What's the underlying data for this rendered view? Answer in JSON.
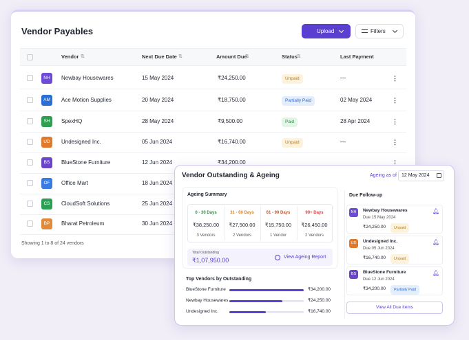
{
  "payables": {
    "title": "Vendor Payables",
    "upload": "Upload",
    "filters": "Filters",
    "columns": [
      "Vendor",
      "Next Due Date",
      "Amount Due",
      "Status",
      "Last Payment"
    ],
    "rows": [
      {
        "initials": "NH",
        "color": "#6d4bd6",
        "vendor": "Newbay Housewares",
        "due": "15 May 2024",
        "amount": "₹24,250.00",
        "status": "Unpaid",
        "status_color": "#b7791f",
        "status_bg": "#fdf3dc",
        "last": "—"
      },
      {
        "initials": "AM",
        "color": "#2a6fd6",
        "vendor": "Ace Motion Supplies",
        "due": "20 May 2024",
        "amount": "₹18,750.00",
        "status": "Partially Paid",
        "status_color": "#2f6bd0",
        "status_bg": "#e3eefc",
        "last": "02 May 2024"
      },
      {
        "initials": "SH",
        "color": "#2fa052",
        "vendor": "SpexHQ",
        "due": "28 May 2024",
        "amount": "₹9,500.00",
        "status": "Paid",
        "status_color": "#2e8b47",
        "status_bg": "#e2f5e6",
        "last": "28 Apr 2024"
      },
      {
        "initials": "UD",
        "color": "#e07a2a",
        "vendor": "Undesigned Inc.",
        "due": "05 Jun 2024",
        "amount": "₹16,740.00",
        "status": "Unpaid",
        "status_color": "#b7791f",
        "status_bg": "#fdf3dc",
        "last": "—"
      },
      {
        "initials": "BS",
        "color": "#6b45c8",
        "vendor": "BlueStone Furniture",
        "due": "12 Jun 2024",
        "amount": "₹34,200.00"
      },
      {
        "initials": "OF",
        "color": "#3a7be0",
        "vendor": "Office Mart",
        "due": "18 Jun 2024"
      },
      {
        "initials": "CS",
        "color": "#2f9e55",
        "vendor": "CloudSoft Solutions",
        "due": "25 Jun 2024"
      },
      {
        "initials": "BP",
        "color": "#e08a3a",
        "vendor": "Bharat Petroleum",
        "due": "30 Jun 2024"
      }
    ],
    "footer": "Showing 1 to 8 of 24 vendors"
  },
  "ageing": {
    "title": "Vendor Outstanding & Ageing",
    "as_of_label": "Ageing as of",
    "as_of": "12 May 2024",
    "summary_title": "Ageing Summary",
    "buckets": [
      {
        "label": "0 - 30 Days",
        "amount": "₹38,250.00",
        "count": "3 Vendors",
        "color": "#2e8b47"
      },
      {
        "label": "31 - 60 Days",
        "amount": "₹27,500.00",
        "count": "2 Vendors",
        "color": "#d9822b"
      },
      {
        "label": "61 - 90 Days",
        "amount": "₹15,750.00",
        "count": "1 Vendor",
        "color": "#c0562f"
      },
      {
        "label": "90+ Days",
        "amount": "₹26,450.00",
        "count": "2 Vendors",
        "color": "#d93f3f"
      }
    ],
    "total_label": "Total Outstanding",
    "total": "₹1,07,950.00",
    "report_link": "View Ageing Report",
    "top_title": "Top Vendors by Outstanding",
    "top_vendors": [
      {
        "name": "BlueStone Furniture",
        "amount": 34200,
        "amount_label": "₹34,200.00"
      },
      {
        "name": "Newbay Housewares",
        "amount": 24250,
        "amount_label": "₹24,250.00"
      },
      {
        "name": "Undesigned Inc.",
        "amount": 16740,
        "amount_label": "₹16,740.00"
      }
    ],
    "bar_color": "#5b3fd0",
    "followup_title": "Due Follow-up",
    "followups": [
      {
        "initials": "NH",
        "color": "#6d4bd6",
        "name": "Newbay Housewares",
        "due": "Due 15 May 2024",
        "amount": "₹24,250.00",
        "status": "Unpaid",
        "status_color": "#b7791f",
        "status_bg": "#fdf3dc"
      },
      {
        "initials": "UD",
        "color": "#e07a2a",
        "name": "Undesigned Inc.",
        "due": "Due 05 Jun 2024",
        "amount": "₹16,740.00",
        "status": "Unpaid",
        "status_color": "#b7791f",
        "status_bg": "#fdf3dc"
      },
      {
        "initials": "BS",
        "color": "#6b45c8",
        "name": "BlueStone Furniture",
        "due": "Due 12 Jun 2024",
        "amount": "₹34,200.00",
        "status": "Partially Paid",
        "status_color": "#2f6bd0",
        "status_bg": "#e3eefc"
      }
    ],
    "view_all": "View All Due Items"
  }
}
